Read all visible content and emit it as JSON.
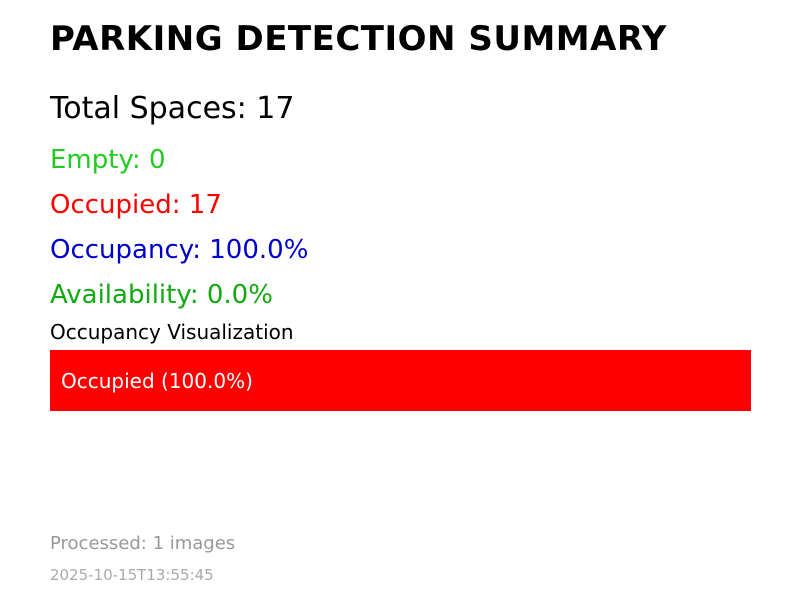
{
  "summary": {
    "title": "PARKING DETECTION SUMMARY",
    "total_spaces": "Total Spaces: 17",
    "empty": "Empty: 0",
    "occupied": "Occupied: 17",
    "occupancy": "Occupancy: 100.0%",
    "availability": "Availability: 0.0%"
  },
  "visualization": {
    "title": "Occupancy Visualization",
    "bar_label": "Occupied (100.0%)",
    "occupied_fraction": 1.0
  },
  "footer": {
    "processed": "Processed: 1 images",
    "timestamp": "2025-10-15T13:55:45"
  },
  "colors": {
    "empty": "#22cc22",
    "occupied": "#ff0000",
    "occupancy": "#0000cc",
    "availability": "#11aa11",
    "bar_fill": "#ff0000"
  }
}
